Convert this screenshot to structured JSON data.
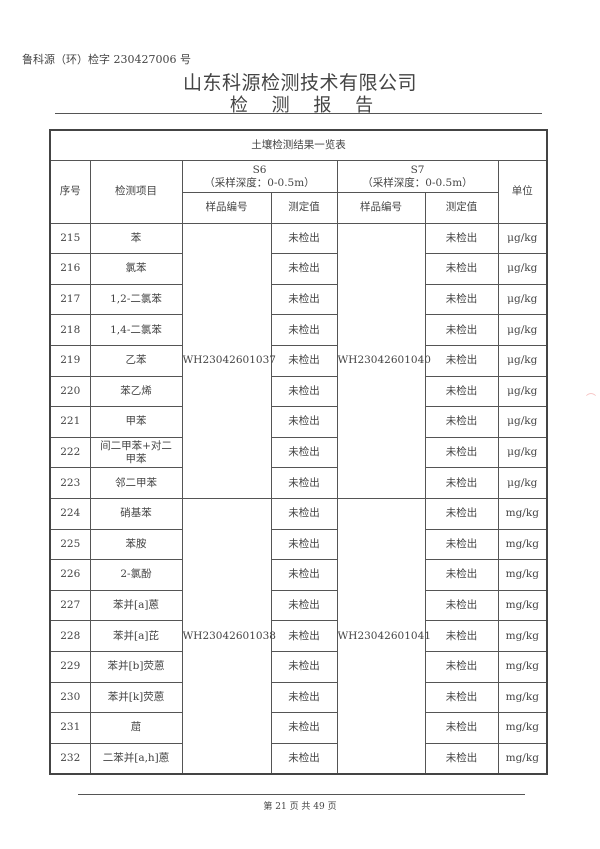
{
  "header": {
    "report_no": "鲁科源（环）检字 230427006 号",
    "company": "山东科源检测技术有限公司",
    "title": "检 测 报 告"
  },
  "table": {
    "caption": "土壤检测结果一览表",
    "col_no": "序号",
    "col_item": "检测项目",
    "col_unit": "单位",
    "s6": {
      "name": "S6",
      "depth": "（采样深度：0-0.5m）"
    },
    "s7": {
      "name": "S7",
      "depth": "（采样深度：0-0.5m）"
    },
    "col_sample": "样品编号",
    "col_value": "测定值",
    "groups": [
      {
        "s6_sample": "WH23042601037",
        "s7_sample": "WH23042601040",
        "rows": [
          {
            "no": "215",
            "item": "苯",
            "s6": "未检出",
            "s7": "未检出",
            "unit": "μg/kg"
          },
          {
            "no": "216",
            "item": "氯苯",
            "s6": "未检出",
            "s7": "未检出",
            "unit": "μg/kg"
          },
          {
            "no": "217",
            "item": "1,2-二氯苯",
            "s6": "未检出",
            "s7": "未检出",
            "unit": "μg/kg"
          },
          {
            "no": "218",
            "item": "1,4-二氯苯",
            "s6": "未检出",
            "s7": "未检出",
            "unit": "μg/kg"
          },
          {
            "no": "219",
            "item": "乙苯",
            "s6": "未检出",
            "s7": "未检出",
            "unit": "μg/kg"
          },
          {
            "no": "220",
            "item": "苯乙烯",
            "s6": "未检出",
            "s7": "未检出",
            "unit": "μg/kg"
          },
          {
            "no": "221",
            "item": "甲苯",
            "s6": "未检出",
            "s7": "未检出",
            "unit": "μg/kg"
          },
          {
            "no": "222",
            "item": "间二甲苯+对二甲苯",
            "s6": "未检出",
            "s7": "未检出",
            "unit": "μg/kg"
          },
          {
            "no": "223",
            "item": "邻二甲苯",
            "s6": "未检出",
            "s7": "未检出",
            "unit": "μg/kg"
          }
        ]
      },
      {
        "s6_sample": "WH23042601038",
        "s7_sample": "WH23042601041",
        "rows": [
          {
            "no": "224",
            "item": "硝基苯",
            "s6": "未检出",
            "s7": "未检出",
            "unit": "mg/kg"
          },
          {
            "no": "225",
            "item": "苯胺",
            "s6": "未检出",
            "s7": "未检出",
            "unit": "mg/kg"
          },
          {
            "no": "226",
            "item": "2-氯酚",
            "s6": "未检出",
            "s7": "未检出",
            "unit": "mg/kg"
          },
          {
            "no": "227",
            "item": "苯并[a]蒽",
            "s6": "未检出",
            "s7": "未检出",
            "unit": "mg/kg"
          },
          {
            "no": "228",
            "item": "苯并[a]芘",
            "s6": "未检出",
            "s7": "未检出",
            "unit": "mg/kg"
          },
          {
            "no": "229",
            "item": "苯并[b]荧蒽",
            "s6": "未检出",
            "s7": "未检出",
            "unit": "mg/kg"
          },
          {
            "no": "230",
            "item": "苯并[k]荧蒽",
            "s6": "未检出",
            "s7": "未检出",
            "unit": "mg/kg"
          },
          {
            "no": "231",
            "item": "䓛",
            "s6": "未检出",
            "s7": "未检出",
            "unit": "mg/kg"
          },
          {
            "no": "232",
            "item": "二苯并[a,h]蒽",
            "s6": "未检出",
            "s7": "未检出",
            "unit": "mg/kg"
          }
        ]
      }
    ]
  },
  "footer": {
    "page": "第 21 页 共 49  页"
  }
}
